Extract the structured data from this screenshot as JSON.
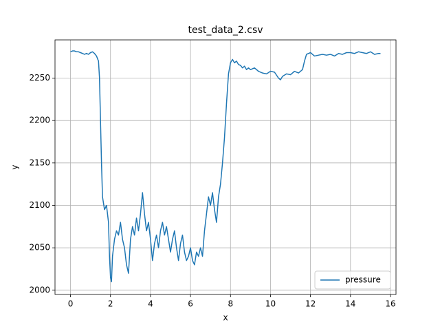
{
  "chart_data": {
    "type": "line",
    "title": "test_data_2.csv",
    "x_label": "x",
    "y_label": "y",
    "x": [
      0,
      0.1,
      0.2,
      0.3,
      0.4,
      0.5,
      0.6,
      0.7,
      0.8,
      0.9,
      1.0,
      1.1,
      1.2,
      1.3,
      1.4,
      1.45,
      1.5,
      1.55,
      1.6,
      1.7,
      1.8,
      1.9,
      1.95,
      2.0,
      2.05,
      2.1,
      2.2,
      2.3,
      2.4,
      2.5,
      2.6,
      2.7,
      2.8,
      2.9,
      3.0,
      3.1,
      3.2,
      3.3,
      3.4,
      3.5,
      3.6,
      3.7,
      3.8,
      3.9,
      4.0,
      4.1,
      4.2,
      4.3,
      4.4,
      4.5,
      4.6,
      4.7,
      4.8,
      4.9,
      5.0,
      5.1,
      5.2,
      5.3,
      5.4,
      5.5,
      5.6,
      5.7,
      5.8,
      5.9,
      6.0,
      6.1,
      6.2,
      6.3,
      6.4,
      6.5,
      6.6,
      6.7,
      6.8,
      6.9,
      7.0,
      7.1,
      7.2,
      7.3,
      7.4,
      7.5,
      7.6,
      7.7,
      7.8,
      7.9,
      8.0,
      8.1,
      8.2,
      8.3,
      8.4,
      8.5,
      8.6,
      8.7,
      8.8,
      8.9,
      9.0,
      9.2,
      9.4,
      9.6,
      9.8,
      10.0,
      10.2,
      10.4,
      10.5,
      10.6,
      10.8,
      11.0,
      11.2,
      11.4,
      11.6,
      11.7,
      11.8,
      12.0,
      12.2,
      12.4,
      12.6,
      12.8,
      13.0,
      13.2,
      13.4,
      13.6,
      13.8,
      14.0,
      14.2,
      14.4,
      14.6,
      14.8,
      15.0,
      15.2,
      15.4,
      15.5
    ],
    "series": [
      {
        "name": "pressure",
        "color": "#1f77b4",
        "values": [
          2281,
          2282,
          2282,
          2281,
          2281,
          2280,
          2279,
          2278,
          2279,
          2278,
          2280,
          2281,
          2279,
          2276,
          2270,
          2250,
          2200,
          2150,
          2110,
          2095,
          2100,
          2080,
          2040,
          2015,
          2010,
          2040,
          2060,
          2070,
          2065,
          2080,
          2060,
          2050,
          2030,
          2020,
          2060,
          2075,
          2065,
          2085,
          2070,
          2090,
          2115,
          2090,
          2070,
          2080,
          2060,
          2035,
          2055,
          2065,
          2050,
          2070,
          2080,
          2065,
          2075,
          2060,
          2045,
          2060,
          2070,
          2050,
          2035,
          2055,
          2065,
          2045,
          2035,
          2040,
          2050,
          2035,
          2030,
          2045,
          2040,
          2050,
          2040,
          2070,
          2090,
          2110,
          2100,
          2115,
          2095,
          2080,
          2110,
          2125,
          2150,
          2180,
          2220,
          2255,
          2268,
          2272,
          2268,
          2270,
          2266,
          2265,
          2262,
          2264,
          2260,
          2262,
          2260,
          2262,
          2258,
          2256,
          2255,
          2258,
          2257,
          2250,
          2248,
          2252,
          2255,
          2254,
          2258,
          2256,
          2260,
          2270,
          2278,
          2280,
          2276,
          2277,
          2278,
          2277,
          2278,
          2276,
          2279,
          2278,
          2280,
          2280,
          2279,
          2281,
          2280,
          2279,
          2281,
          2278,
          2279,
          2279
        ]
      }
    ],
    "xlim": [
      -0.775,
      16.275
    ],
    "ylim": [
      1995,
      2295
    ],
    "xticks": [
      0,
      2,
      4,
      6,
      8,
      10,
      12,
      14,
      16
    ],
    "yticks": [
      2000,
      2050,
      2100,
      2150,
      2200,
      2250
    ],
    "grid": true,
    "legend": "lower right"
  }
}
